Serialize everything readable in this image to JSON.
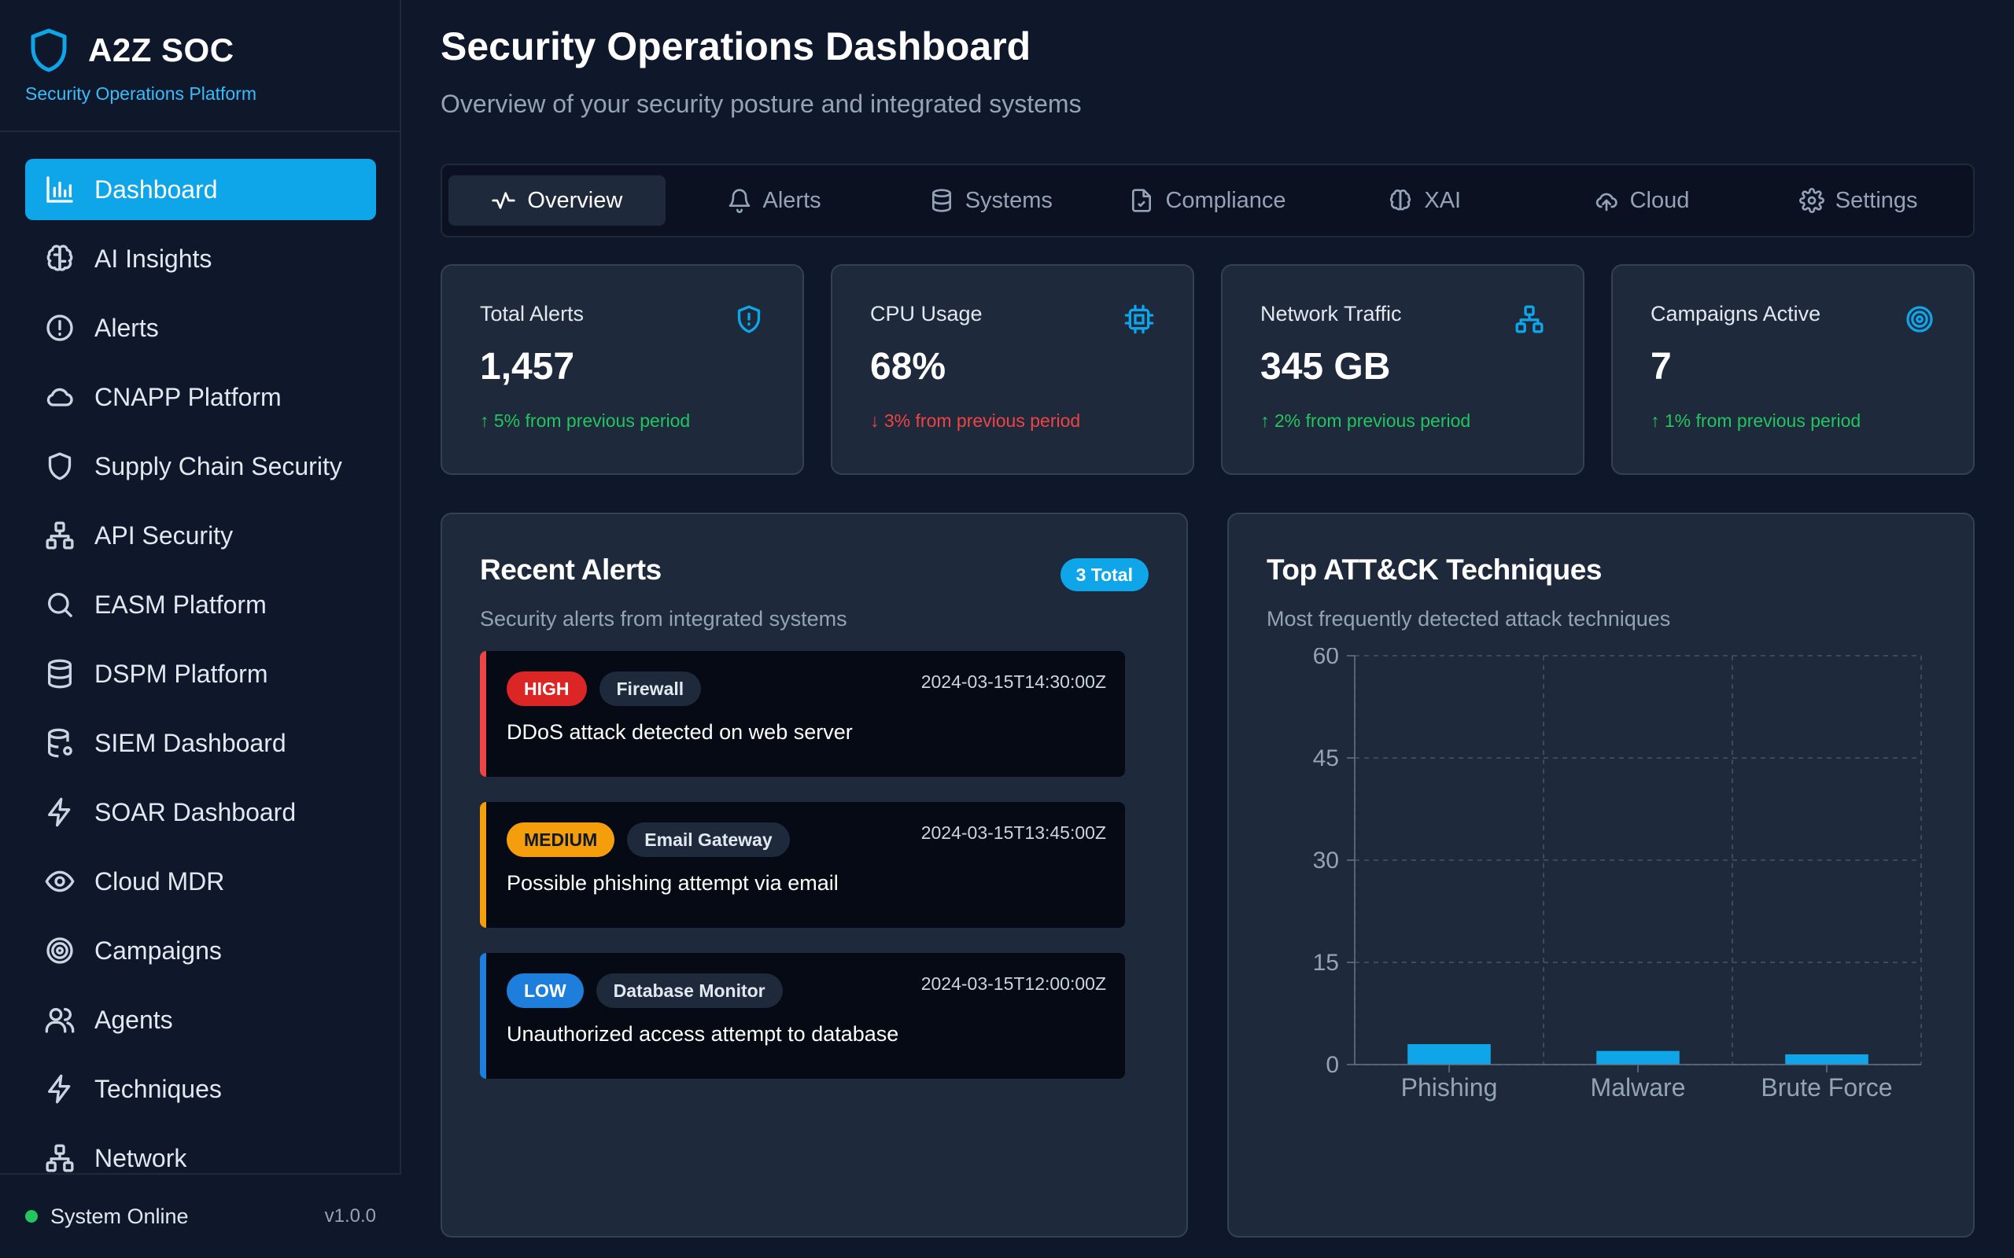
{
  "brand": {
    "name": "A2Z SOC",
    "subtitle": "Security Operations Platform",
    "logo_icon": "shield-icon",
    "accent": "#0ea5e9"
  },
  "sidebar": {
    "items": [
      {
        "label": "Dashboard",
        "icon": "bar-chart-icon",
        "active": true
      },
      {
        "label": "AI Insights",
        "icon": "brain-icon"
      },
      {
        "label": "Alerts",
        "icon": "alert-circle-icon"
      },
      {
        "label": "CNAPP Platform",
        "icon": "cloud-icon"
      },
      {
        "label": "Supply Chain Security",
        "icon": "shield-icon"
      },
      {
        "label": "API Security",
        "icon": "network-icon"
      },
      {
        "label": "EASM Platform",
        "icon": "search-icon"
      },
      {
        "label": "DSPM Platform",
        "icon": "database-icon"
      },
      {
        "label": "SIEM Dashboard",
        "icon": "database-cog-icon"
      },
      {
        "label": "SOAR Dashboard",
        "icon": "lightning-icon"
      },
      {
        "label": "Cloud MDR",
        "icon": "eye-icon"
      },
      {
        "label": "Campaigns",
        "icon": "target-icon"
      },
      {
        "label": "Agents",
        "icon": "users-icon"
      },
      {
        "label": "Techniques",
        "icon": "lightning-icon"
      },
      {
        "label": "Network",
        "icon": "network-icon"
      }
    ],
    "status": "System Online",
    "status_color": "#22c55e",
    "version": "v1.0.0"
  },
  "header": {
    "title": "Security Operations Dashboard",
    "subtitle": "Overview of your security posture and integrated systems"
  },
  "tabs": [
    {
      "label": "Overview",
      "icon": "activity-icon",
      "active": true
    },
    {
      "label": "Alerts",
      "icon": "bell-icon"
    },
    {
      "label": "Systems",
      "icon": "database-icon"
    },
    {
      "label": "Compliance",
      "icon": "file-check-icon"
    },
    {
      "label": "XAI",
      "icon": "brain-icon"
    },
    {
      "label": "Cloud",
      "icon": "cloud-upload-icon"
    },
    {
      "label": "Settings",
      "icon": "gear-icon"
    }
  ],
  "stats": [
    {
      "label": "Total Alerts",
      "value": "1,457",
      "change": "↑ 5% from previous period",
      "direction": "up",
      "icon": "shield-alert-icon"
    },
    {
      "label": "CPU Usage",
      "value": "68%",
      "change": "↓ 3% from previous period",
      "direction": "down",
      "icon": "cpu-icon"
    },
    {
      "label": "Network Traffic",
      "value": "345 GB",
      "change": "↑ 2% from previous period",
      "direction": "up",
      "icon": "network-icon"
    },
    {
      "label": "Campaigns Active",
      "value": "7",
      "change": "↑ 1% from previous period",
      "direction": "up",
      "icon": "target-icon"
    }
  ],
  "recent_alerts": {
    "title": "Recent Alerts",
    "subtitle": "Security alerts from integrated systems",
    "badge": "3 Total",
    "items": [
      {
        "severity": "HIGH",
        "source": "Firewall",
        "time": "2024-03-15T14:30:00Z",
        "message": "DDoS attack detected on web server"
      },
      {
        "severity": "MEDIUM",
        "source": "Email Gateway",
        "time": "2024-03-15T13:45:00Z",
        "message": "Possible phishing attempt via email"
      },
      {
        "severity": "LOW",
        "source": "Database Monitor",
        "time": "2024-03-15T12:00:00Z",
        "message": "Unauthorized access attempt to database"
      }
    ]
  },
  "techniques": {
    "title": "Top ATT&CK Techniques",
    "subtitle": "Most frequently detected attack techniques"
  },
  "chart_data": {
    "type": "bar",
    "categories": [
      "Phishing",
      "Malware",
      "Brute Force"
    ],
    "values": [
      3,
      2,
      1.5
    ],
    "ylim": [
      0,
      60
    ],
    "yticks": [
      "0",
      "15",
      "30",
      "45",
      "60"
    ],
    "grid": true,
    "bar_color": "#0ea5e9",
    "title": "",
    "xlabel": "",
    "ylabel": ""
  }
}
